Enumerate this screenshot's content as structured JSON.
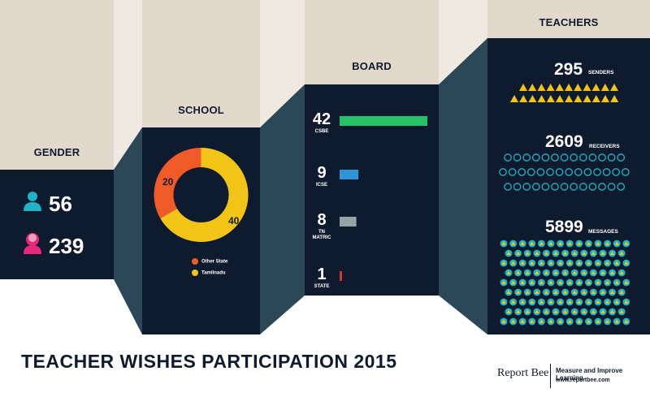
{
  "title": "TEACHER WISHES PARTICIPATION 2015",
  "brand": "Report Bee",
  "tagline": "Measure and Improve Learning",
  "url": "www.reportbee.com",
  "colors": {
    "panel": "#0e1b2e",
    "fold": "#2b4758",
    "beige": "#e2d8cc",
    "orange": "#f05a28",
    "yellow": "#f2c416",
    "green": "#27c266",
    "blue": "#2d96d6",
    "gray": "#95a3a4",
    "red": "#d0392b",
    "cyan": "#1fb5c6",
    "male_icon": "#1fb5c6",
    "female_icon": "#e8297a"
  },
  "gender": {
    "header": "GENDER",
    "male_count": "56",
    "female_count": "239",
    "male_icon": "male-user-icon",
    "female_icon": "female-user-icon"
  },
  "school": {
    "header": "SCHOOL"
  },
  "board": {
    "header": "BOARD"
  },
  "teachers": {
    "header": "TEACHERS",
    "senders_value": "295",
    "senders_label": "SENDERS",
    "receivers_value": "2609",
    "receivers_label": "RECEIVERS",
    "messages_value": "5899",
    "messages_label": "MESSAGES"
  },
  "chart_data": [
    {
      "type": "pie",
      "title": "SCHOOL",
      "labels": [
        "Other State",
        "Tamilnadu"
      ],
      "values": [
        20,
        40
      ],
      "colors": [
        "#f05a28",
        "#f2c416"
      ],
      "legend": "bottom"
    },
    {
      "type": "bar",
      "title": "BOARD",
      "categories": [
        "CSBE",
        "ICSE",
        "TN MATRIC",
        "STATE"
      ],
      "values": [
        42,
        9,
        8,
        1
      ],
      "colors": [
        "#27c266",
        "#2d96d6",
        "#95a3a4",
        "#d0392b"
      ]
    }
  ]
}
